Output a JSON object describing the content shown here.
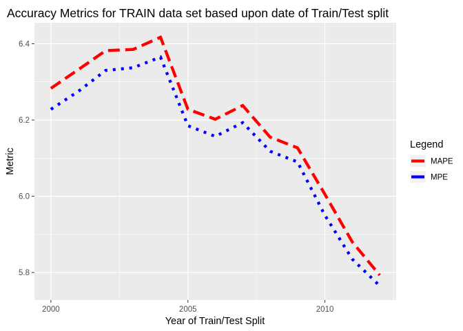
{
  "chart_data": {
    "type": "line",
    "title": "Accuracy Metrics for TRAIN data set based upon date of Train/Test split",
    "xlabel": "Year of Train/Test Split",
    "ylabel": "Metric",
    "xlim": [
      1999.4,
      2012.6
    ],
    "ylim": [
      5.728,
      6.455
    ],
    "x_ticks": [
      2000,
      2005,
      2010
    ],
    "x_minor_ticks": [
      2002.5,
      2007.5,
      2012.5
    ],
    "y_ticks": [
      5.8,
      6.0,
      6.2,
      6.4
    ],
    "y_tick_labels": [
      "5.8",
      "6.0",
      "6.2",
      "6.4"
    ],
    "x_tick_labels": [
      "2000",
      "2005",
      "2010"
    ],
    "grid": true,
    "background": "#ebebeb",
    "legend": {
      "title": "Legend",
      "position": "right"
    },
    "x": [
      2000,
      2001,
      2002,
      2003,
      2004,
      2005,
      2006,
      2007,
      2008,
      2009,
      2010,
      2011,
      2012
    ],
    "series": [
      {
        "name": "MAPE",
        "color": "#ff0000",
        "dash": "dashed",
        "values": [
          6.283,
          6.332,
          6.382,
          6.385,
          6.417,
          6.228,
          6.202,
          6.238,
          6.155,
          6.127,
          6.005,
          5.88,
          5.793
        ]
      },
      {
        "name": "MPE",
        "color": "#0000ff",
        "dash": "dotted",
        "values": [
          6.228,
          6.275,
          6.33,
          6.337,
          6.365,
          6.185,
          6.157,
          6.193,
          6.118,
          6.09,
          5.95,
          5.835,
          5.765
        ]
      }
    ]
  }
}
